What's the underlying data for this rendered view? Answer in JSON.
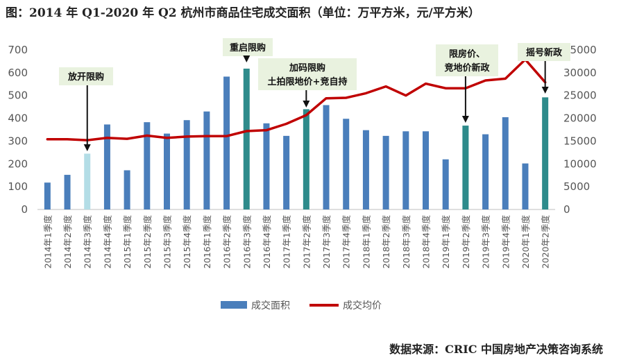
{
  "title": "图：2014 年 Q1-2020 年 Q2 杭州市商品住宅成交面积（单位：万平方米，元/平方米）",
  "source": "数据来源：CRIC 中国房地产决策咨询系统",
  "chart_data": {
    "type": "bar+line",
    "categories": [
      "2014年1季度",
      "2014年2季度",
      "2014年3季度",
      "2014年4季度",
      "2015年1季度",
      "2015年2季度",
      "2015年3季度",
      "2015年4季度",
      "2016年1季度",
      "2016年2季度",
      "2016年3季度",
      "2016年4季度",
      "2017年1季度",
      "2017年2季度",
      "2017年3季度",
      "2017年4季度",
      "2018年1季度",
      "2018年2季度",
      "2018年3季度",
      "2018年4季度",
      "2019年1季度",
      "2019年2季度",
      "2019年3季度",
      "2019年4季度",
      "2020年1季度",
      "2020年2季度"
    ],
    "series": [
      {
        "name": "成交面积",
        "type": "bar",
        "axis": "left",
        "values": [
          118,
          152,
          245,
          373,
          172,
          383,
          333,
          392,
          430,
          583,
          618,
          378,
          323,
          440,
          458,
          398,
          348,
          323,
          343,
          343,
          220,
          368,
          330,
          405,
          202,
          492
        ]
      },
      {
        "name": "成交均价",
        "type": "line",
        "axis": "right",
        "values": [
          15400,
          15400,
          15200,
          15700,
          15500,
          16200,
          15700,
          16000,
          16100,
          16100,
          17200,
          17400,
          18800,
          20700,
          24400,
          24500,
          25500,
          27000,
          25000,
          27600,
          26600,
          26600,
          28300,
          28700,
          32900,
          27900
        ]
      }
    ],
    "bar_colors": {
      "default": "#4a7ebb",
      "highlight_policy": "#2e8b8b",
      "highlight_light": "#b3dde6"
    },
    "bar_color_keys": [
      "default",
      "default",
      "highlight_light",
      "default",
      "default",
      "default",
      "default",
      "default",
      "default",
      "default",
      "highlight_policy",
      "default",
      "default",
      "highlight_policy",
      "default",
      "default",
      "default",
      "default",
      "default",
      "default",
      "default",
      "highlight_policy",
      "default",
      "default",
      "default",
      "highlight_policy"
    ],
    "line_color": "#c00000",
    "yleft": {
      "min": 0,
      "max": 700,
      "ticks": [
        0,
        100,
        200,
        300,
        400,
        500,
        600,
        700
      ]
    },
    "yright": {
      "min": 0,
      "max": 35000,
      "ticks": [
        0,
        5000,
        10000,
        15000,
        20000,
        25000,
        30000,
        35000
      ]
    },
    "legend": [
      {
        "label": "成交面积",
        "kind": "bar"
      },
      {
        "label": "成交均价",
        "kind": "line"
      }
    ],
    "annotations": [
      {
        "lines": [
          "放开限购"
        ],
        "category_index": 2
      },
      {
        "lines": [
          "重启限购"
        ],
        "category_index": 10
      },
      {
        "lines": [
          "加码限购",
          "土拍限地价+竞自持"
        ],
        "category_index": 13
      },
      {
        "lines": [
          "限房价、",
          "竞地价新政"
        ],
        "category_index": 21
      },
      {
        "lines": [
          "摇号新政"
        ],
        "category_index": 25
      }
    ]
  }
}
